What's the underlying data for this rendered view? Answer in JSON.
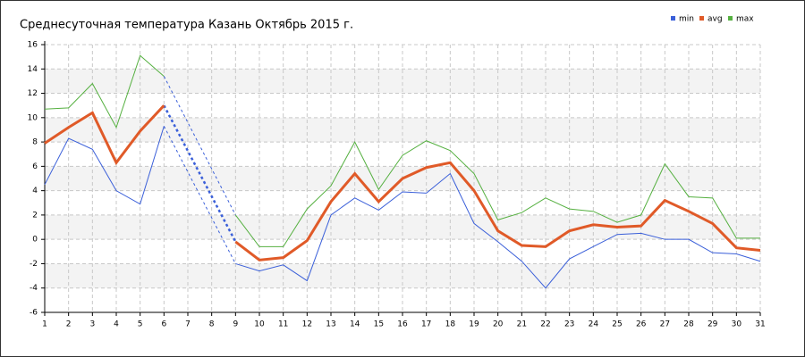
{
  "chart_data": {
    "type": "line",
    "title": "Среднесуточная температура Казань  Октябрь 2015 г.",
    "x": [
      1,
      2,
      3,
      4,
      5,
      6,
      7,
      8,
      9,
      10,
      11,
      12,
      13,
      14,
      15,
      16,
      17,
      18,
      19,
      20,
      21,
      22,
      23,
      24,
      25,
      26,
      27,
      28,
      29,
      30,
      31
    ],
    "series": [
      {
        "name": "min",
        "color": "#3a5fd9",
        "values": [
          4.5,
          8.3,
          7.4,
          4.0,
          2.9,
          9.3,
          null,
          null,
          -2.0,
          -2.6,
          -2.1,
          -3.4,
          2.0,
          3.4,
          2.4,
          3.9,
          3.8,
          5.4,
          1.3,
          -0.2,
          -1.8,
          -4.0,
          -1.6,
          -0.6,
          0.4,
          0.5,
          0.0,
          0.0,
          -1.1,
          -1.2,
          -1.8
        ]
      },
      {
        "name": "avg",
        "color": "#e05a28",
        "values": [
          7.9,
          9.2,
          10.4,
          6.3,
          8.9,
          11.0,
          null,
          null,
          -0.2,
          -1.7,
          -1.5,
          -0.1,
          3.1,
          5.4,
          3.1,
          5.0,
          5.9,
          6.3,
          4.0,
          0.7,
          -0.5,
          -0.6,
          0.7,
          1.2,
          1.0,
          1.1,
          3.2,
          2.3,
          1.3,
          -0.7,
          -0.9
        ]
      },
      {
        "name": "max",
        "color": "#55b040",
        "values": [
          10.7,
          10.8,
          12.8,
          9.2,
          15.1,
          13.4,
          null,
          null,
          2.0,
          -0.6,
          -0.6,
          2.5,
          4.4,
          8.0,
          4.1,
          6.9,
          8.1,
          7.3,
          5.4,
          1.6,
          2.2,
          3.4,
          2.5,
          2.3,
          1.4,
          2.0,
          6.2,
          3.5,
          3.4,
          0.1,
          0.1
        ]
      }
    ],
    "xlim": [
      1,
      31
    ],
    "xticks": [
      1,
      2,
      3,
      4,
      5,
      6,
      7,
      8,
      9,
      10,
      11,
      12,
      13,
      14,
      15,
      16,
      17,
      18,
      19,
      20,
      21,
      22,
      23,
      24,
      25,
      26,
      27,
      28,
      29,
      30,
      31
    ],
    "ylim": [
      -6,
      16
    ],
    "yticks": [
      -6,
      -4,
      -2,
      0,
      2,
      4,
      6,
      8,
      10,
      12,
      14,
      16
    ],
    "grid": true,
    "legend": "top-right"
  }
}
